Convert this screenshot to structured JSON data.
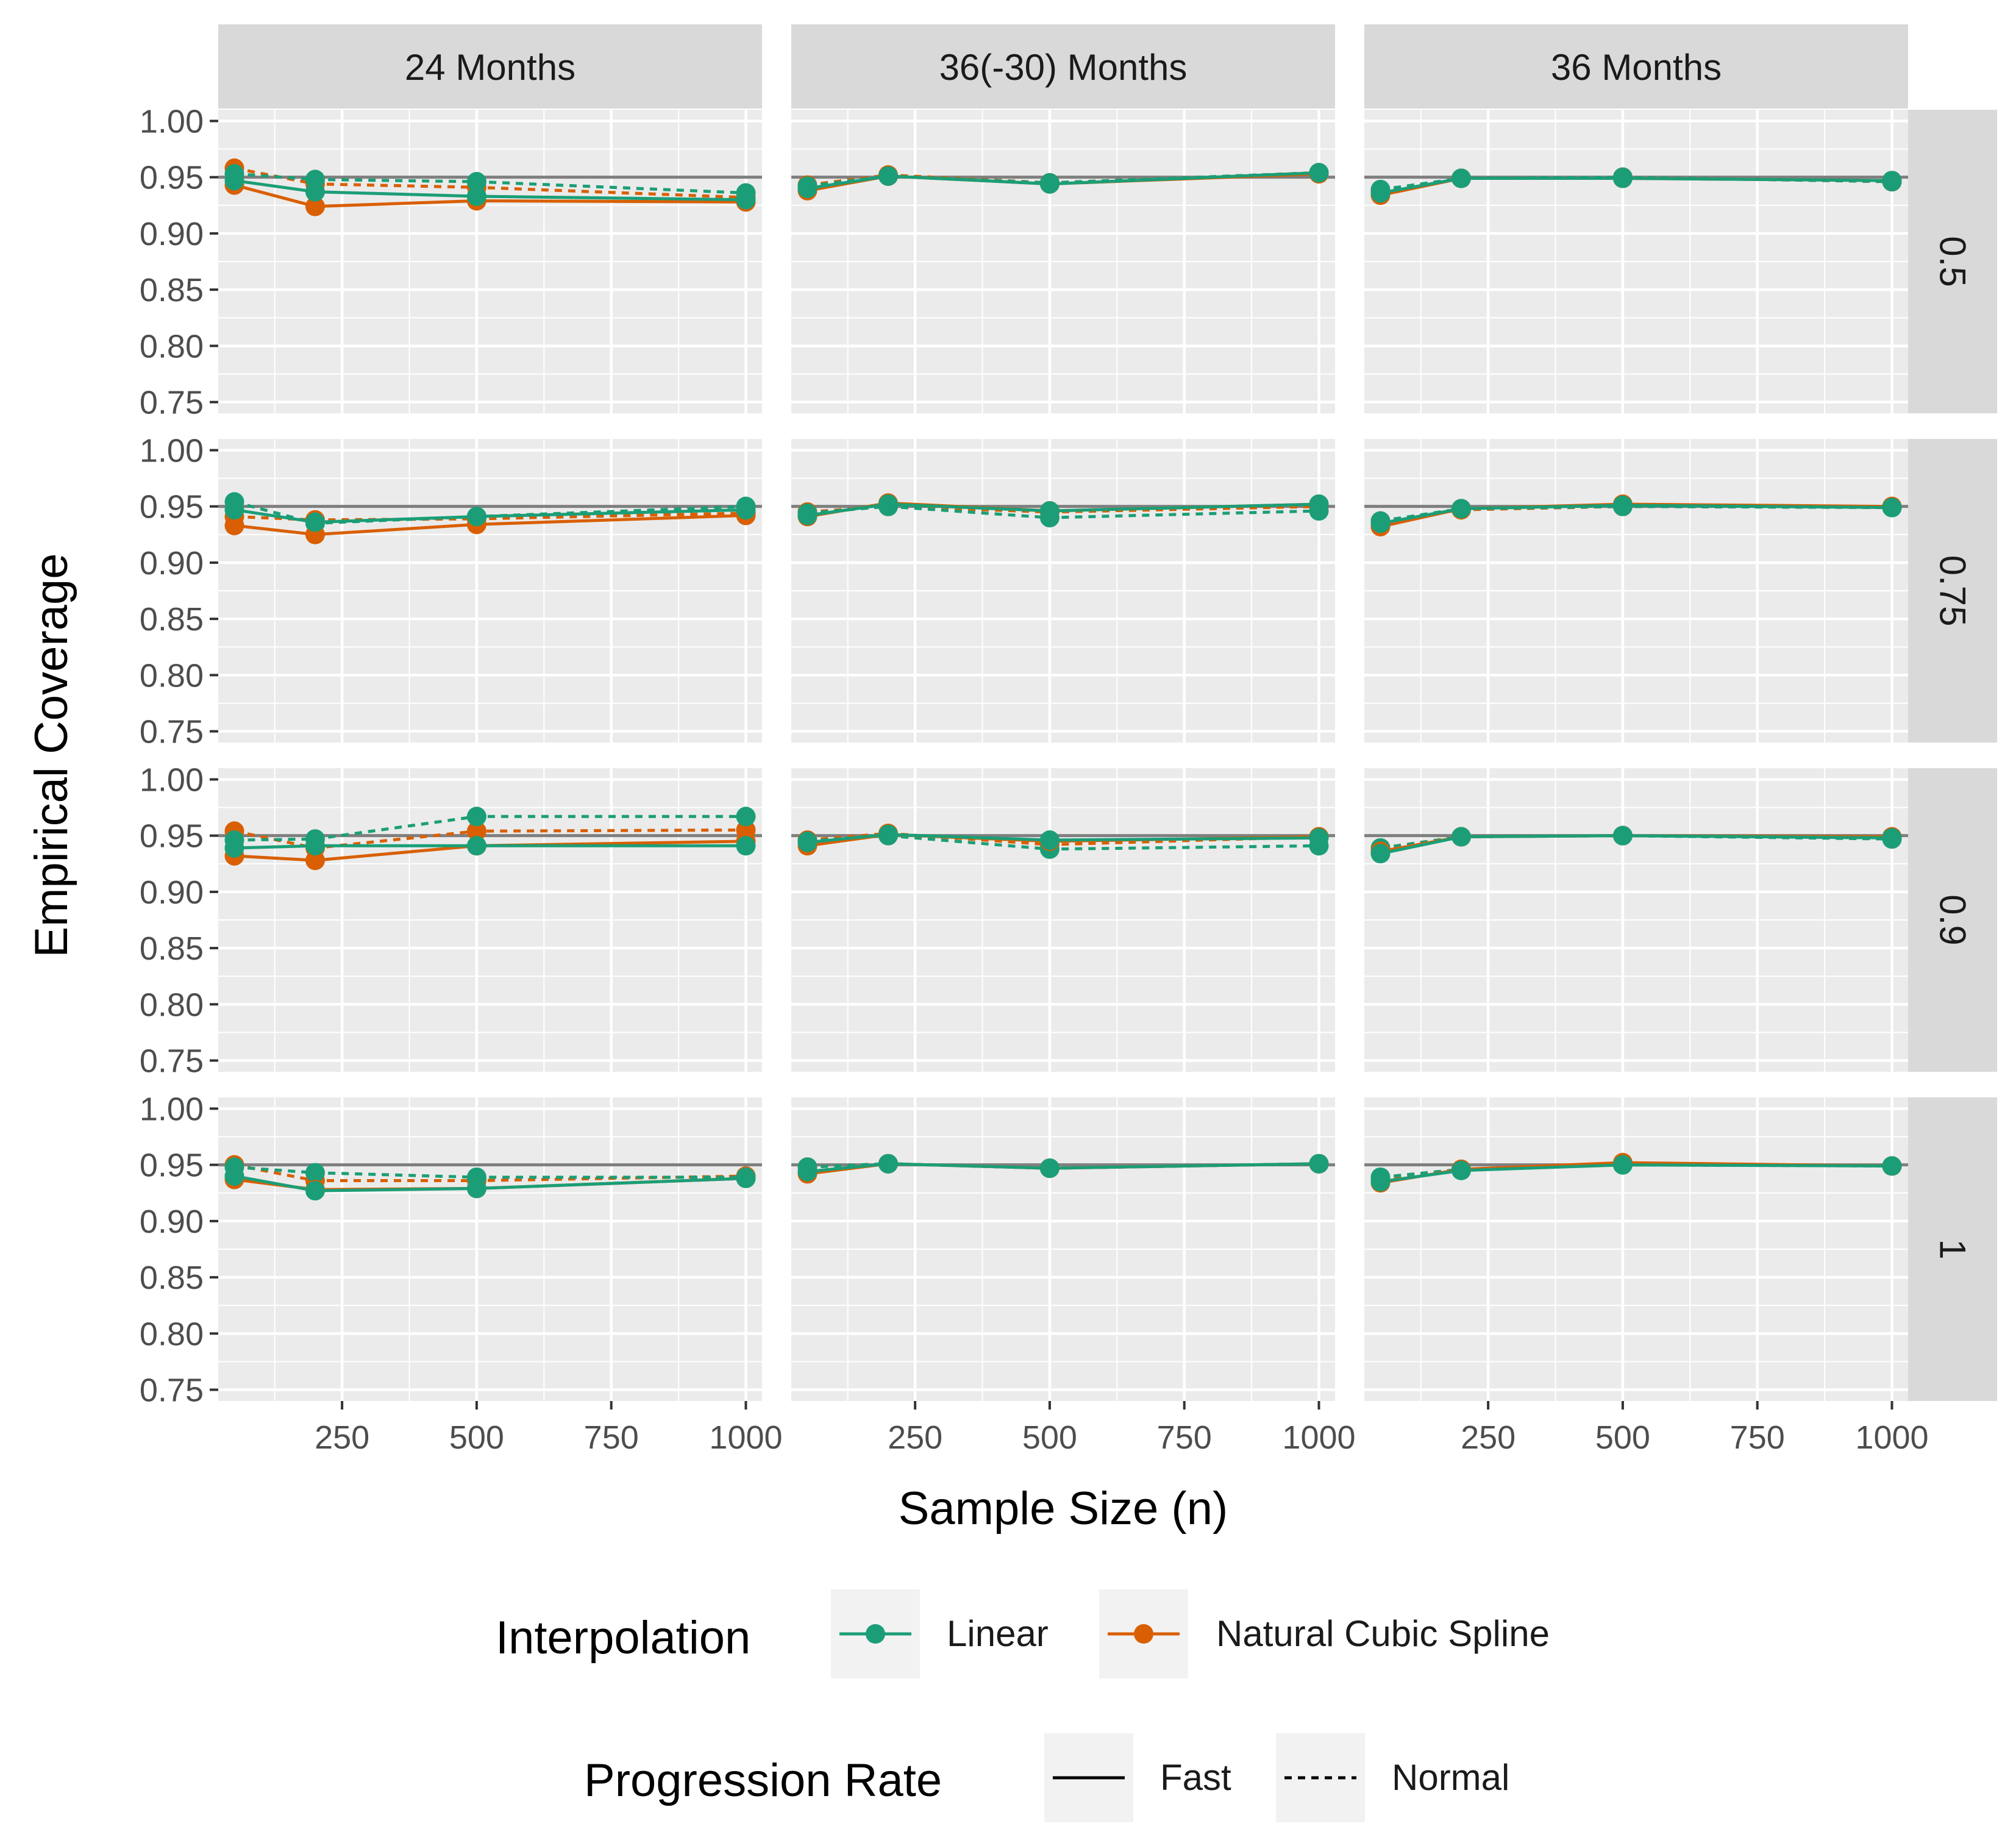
{
  "chart_data": {
    "type": "line",
    "layout": "faceted grid: 3 columns x 4 rows",
    "xlabel": "Sample Size (n)",
    "ylabel": "Empirical Coverage",
    "x": [
      50,
      200,
      500,
      1000
    ],
    "xlim": [
      20,
      1030
    ],
    "xticks": [
      250,
      500,
      750,
      1000
    ],
    "ylim": [
      0.74,
      1.01
    ],
    "yticks": [
      0.75,
      0.8,
      0.85,
      0.9,
      0.95,
      1.0
    ],
    "ytick_labels": [
      "0.75",
      "0.80",
      "0.85",
      "0.90",
      "0.95",
      "1.00"
    ],
    "reference_line": 0.95,
    "grid": true,
    "column_strips": [
      "24 Months",
      "36(-30) Months",
      "36 Months"
    ],
    "row_strips": [
      "0.5",
      "0.75",
      "0.9",
      "1"
    ],
    "colors": {
      "Linear": "#1b9e77",
      "Natural Cubic Spline": "#d95f02",
      "reference": "#7f7f7f",
      "panel_bg": "#ebebeb",
      "strip_bg": "#d9d9d9"
    },
    "legend": {
      "placement": "bottom",
      "interpolation": {
        "title": "Interpolation",
        "items": [
          "Linear",
          "Natural Cubic Spline"
        ]
      },
      "progression": {
        "title": "Progression Rate",
        "items": [
          "Fast",
          "Normal"
        ]
      }
    },
    "panels": [
      [
        {
          "Linear": {
            "Fast": [
              0.947,
              0.937,
              0.933,
              0.93
            ],
            "Normal": [
              0.953,
              0.948,
              0.946,
              0.936
            ]
          },
          "Natural Cubic Spline": {
            "Fast": [
              0.943,
              0.924,
              0.929,
              0.928
            ],
            "Normal": [
              0.958,
              0.944,
              0.941,
              0.932
            ]
          }
        },
        {
          "Linear": {
            "Fast": [
              0.94,
              0.951,
              0.944,
              0.954
            ],
            "Normal": [
              0.942,
              0.951,
              0.945,
              0.954
            ]
          },
          "Natural Cubic Spline": {
            "Fast": [
              0.938,
              0.951,
              0.944,
              0.953
            ],
            "Normal": [
              0.943,
              0.952,
              0.945,
              0.954
            ]
          }
        },
        {
          "Linear": {
            "Fast": [
              0.936,
              0.949,
              0.949,
              0.947
            ],
            "Normal": [
              0.939,
              0.949,
              0.95,
              0.946
            ]
          },
          "Natural Cubic Spline": {
            "Fast": [
              0.934,
              0.949,
              0.949,
              0.947
            ],
            "Normal": [
              0.938,
              0.949,
              0.95,
              0.946
            ]
          }
        }
      ],
      [
        {
          "Linear": {
            "Fast": [
              0.947,
              0.936,
              0.941,
              0.947
            ],
            "Normal": [
              0.954,
              0.935,
              0.941,
              0.95
            ]
          },
          "Natural Cubic Spline": {
            "Fast": [
              0.933,
              0.925,
              0.934,
              0.942
            ],
            "Normal": [
              0.941,
              0.938,
              0.939,
              0.944
            ]
          }
        },
        {
          "Linear": {
            "Fast": [
              0.942,
              0.952,
              0.946,
              0.952
            ],
            "Normal": [
              0.944,
              0.95,
              0.94,
              0.946
            ]
          },
          "Natural Cubic Spline": {
            "Fast": [
              0.941,
              0.953,
              0.946,
              0.952
            ],
            "Normal": [
              0.945,
              0.95,
              0.945,
              0.95
            ]
          }
        },
        {
          "Linear": {
            "Fast": [
              0.935,
              0.948,
              0.951,
              0.949
            ],
            "Normal": [
              0.937,
              0.948,
              0.95,
              0.949
            ]
          },
          "Natural Cubic Spline": {
            "Fast": [
              0.932,
              0.948,
              0.952,
              0.95
            ],
            "Normal": [
              0.937,
              0.947,
              0.95,
              0.949
            ]
          }
        }
      ],
      [
        {
          "Linear": {
            "Fast": [
              0.939,
              0.941,
              0.941,
              0.941
            ],
            "Normal": [
              0.946,
              0.947,
              0.967,
              0.967
            ]
          },
          "Natural Cubic Spline": {
            "Fast": [
              0.932,
              0.928,
              0.941,
              0.945
            ],
            "Normal": [
              0.954,
              0.939,
              0.954,
              0.955
            ]
          }
        },
        {
          "Linear": {
            "Fast": [
              0.944,
              0.951,
              0.946,
              0.948
            ],
            "Normal": [
              0.945,
              0.95,
              0.938,
              0.941
            ]
          },
          "Natural Cubic Spline": {
            "Fast": [
              0.941,
              0.951,
              0.945,
              0.949
            ],
            "Normal": [
              0.946,
              0.952,
              0.942,
              0.949
            ]
          }
        },
        {
          "Linear": {
            "Fast": [
              0.934,
              0.949,
              0.95,
              0.948
            ],
            "Normal": [
              0.939,
              0.949,
              0.95,
              0.947
            ]
          },
          "Natural Cubic Spline": {
            "Fast": [
              0.936,
              0.949,
              0.95,
              0.949
            ],
            "Normal": [
              0.939,
              0.949,
              0.95,
              0.948
            ]
          }
        }
      ],
      [
        {
          "Linear": {
            "Fast": [
              0.94,
              0.927,
              0.929,
              0.938
            ],
            "Normal": [
              0.948,
              0.943,
              0.939,
              0.939
            ]
          },
          "Natural Cubic Spline": {
            "Fast": [
              0.937,
              0.928,
              0.929,
              0.938
            ],
            "Normal": [
              0.95,
              0.936,
              0.936,
              0.94
            ]
          }
        },
        {
          "Linear": {
            "Fast": [
              0.944,
              0.951,
              0.947,
              0.951
            ],
            "Normal": [
              0.948,
              0.951,
              0.947,
              0.951
            ]
          },
          "Natural Cubic Spline": {
            "Fast": [
              0.942,
              0.951,
              0.947,
              0.951
            ],
            "Normal": [
              0.948,
              0.951,
              0.947,
              0.951
            ]
          }
        },
        {
          "Linear": {
            "Fast": [
              0.935,
              0.945,
              0.95,
              0.949
            ],
            "Normal": [
              0.939,
              0.946,
              0.95,
              0.949
            ]
          },
          "Natural Cubic Spline": {
            "Fast": [
              0.934,
              0.946,
              0.952,
              0.949
            ],
            "Normal": [
              0.938,
              0.946,
              0.951,
              0.949
            ]
          }
        }
      ]
    ]
  }
}
